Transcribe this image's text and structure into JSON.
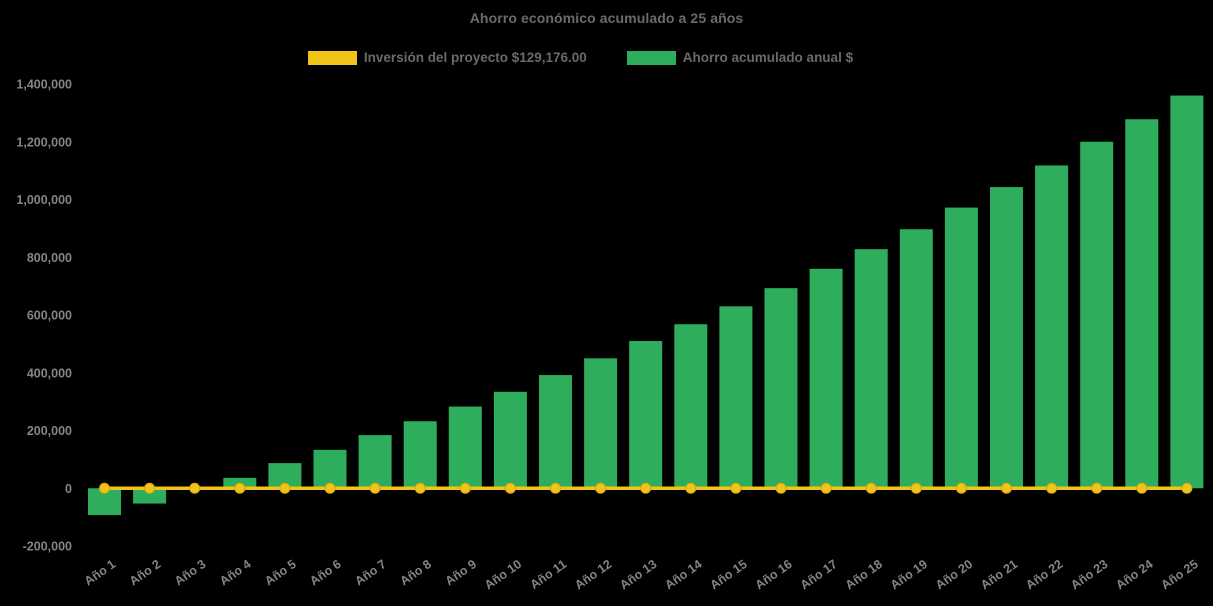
{
  "title": "Ahorro económico acumulado a 25 años",
  "legend": [
    {
      "label": "Inversión del proyecto $129,176.00",
      "color": "#F0C419"
    },
    {
      "label": "Ahorro acumulado anual $",
      "color": "#2EAE5C"
    }
  ],
  "colors": {
    "background": "#000000",
    "bar_green": "#2EAE5C",
    "line_yellow": "#F0C419",
    "marker_border": "#D9A70F",
    "title_text": "#6b6b6b",
    "axis_text": "#858585"
  },
  "chart_data": {
    "type": "bar",
    "subtype": "bar-with-line-combo",
    "title": "Ahorro económico acumulado a 25 años",
    "xlabel": "",
    "ylabel": "",
    "categories": [
      "Año 1",
      "Año 2",
      "Año 3",
      "Año 4",
      "Año 5",
      "Año 6",
      "Año 7",
      "Año 8",
      "Año 9",
      "Año 10",
      "Año 11",
      "Año 12",
      "Año 13",
      "Año 14",
      "Año 15",
      "Año 16",
      "Año 17",
      "Año 18",
      "Año 19",
      "Año 20",
      "Año 21",
      "Año 22",
      "Año 23",
      "Año 24",
      "Año 25"
    ],
    "series": [
      {
        "name": "Inversión del proyecto $129,176.00",
        "type": "line",
        "color": "#F0C419",
        "marker": "circle",
        "values": [
          0,
          0,
          0,
          0,
          0,
          0,
          0,
          0,
          0,
          0,
          0,
          0,
          0,
          0,
          0,
          0,
          0,
          0,
          0,
          0,
          0,
          0,
          0,
          0,
          0
        ]
      },
      {
        "name": "Ahorro acumulado anual $",
        "type": "bar",
        "color": "#2EAE5C",
        "values": [
          -93000,
          -53000,
          -5000,
          36000,
          87000,
          133000,
          184000,
          232000,
          283000,
          334000,
          392000,
          450000,
          510000,
          568000,
          630000,
          693000,
          760000,
          828000,
          897000,
          972000,
          1043000,
          1118000,
          1200000,
          1278000,
          1360000
        ]
      }
    ],
    "ylim": [
      -200000,
      1400000
    ],
    "ytick_step": 200000,
    "ytick_labels": [
      "-200,000",
      "0",
      "200,000",
      "400,000",
      "600,000",
      "800,000",
      "1,000,000",
      "1,200,000",
      "1,400,000"
    ],
    "grid": false,
    "legend_position": "top",
    "x_label_rotation": -35,
    "background": "#000000"
  }
}
